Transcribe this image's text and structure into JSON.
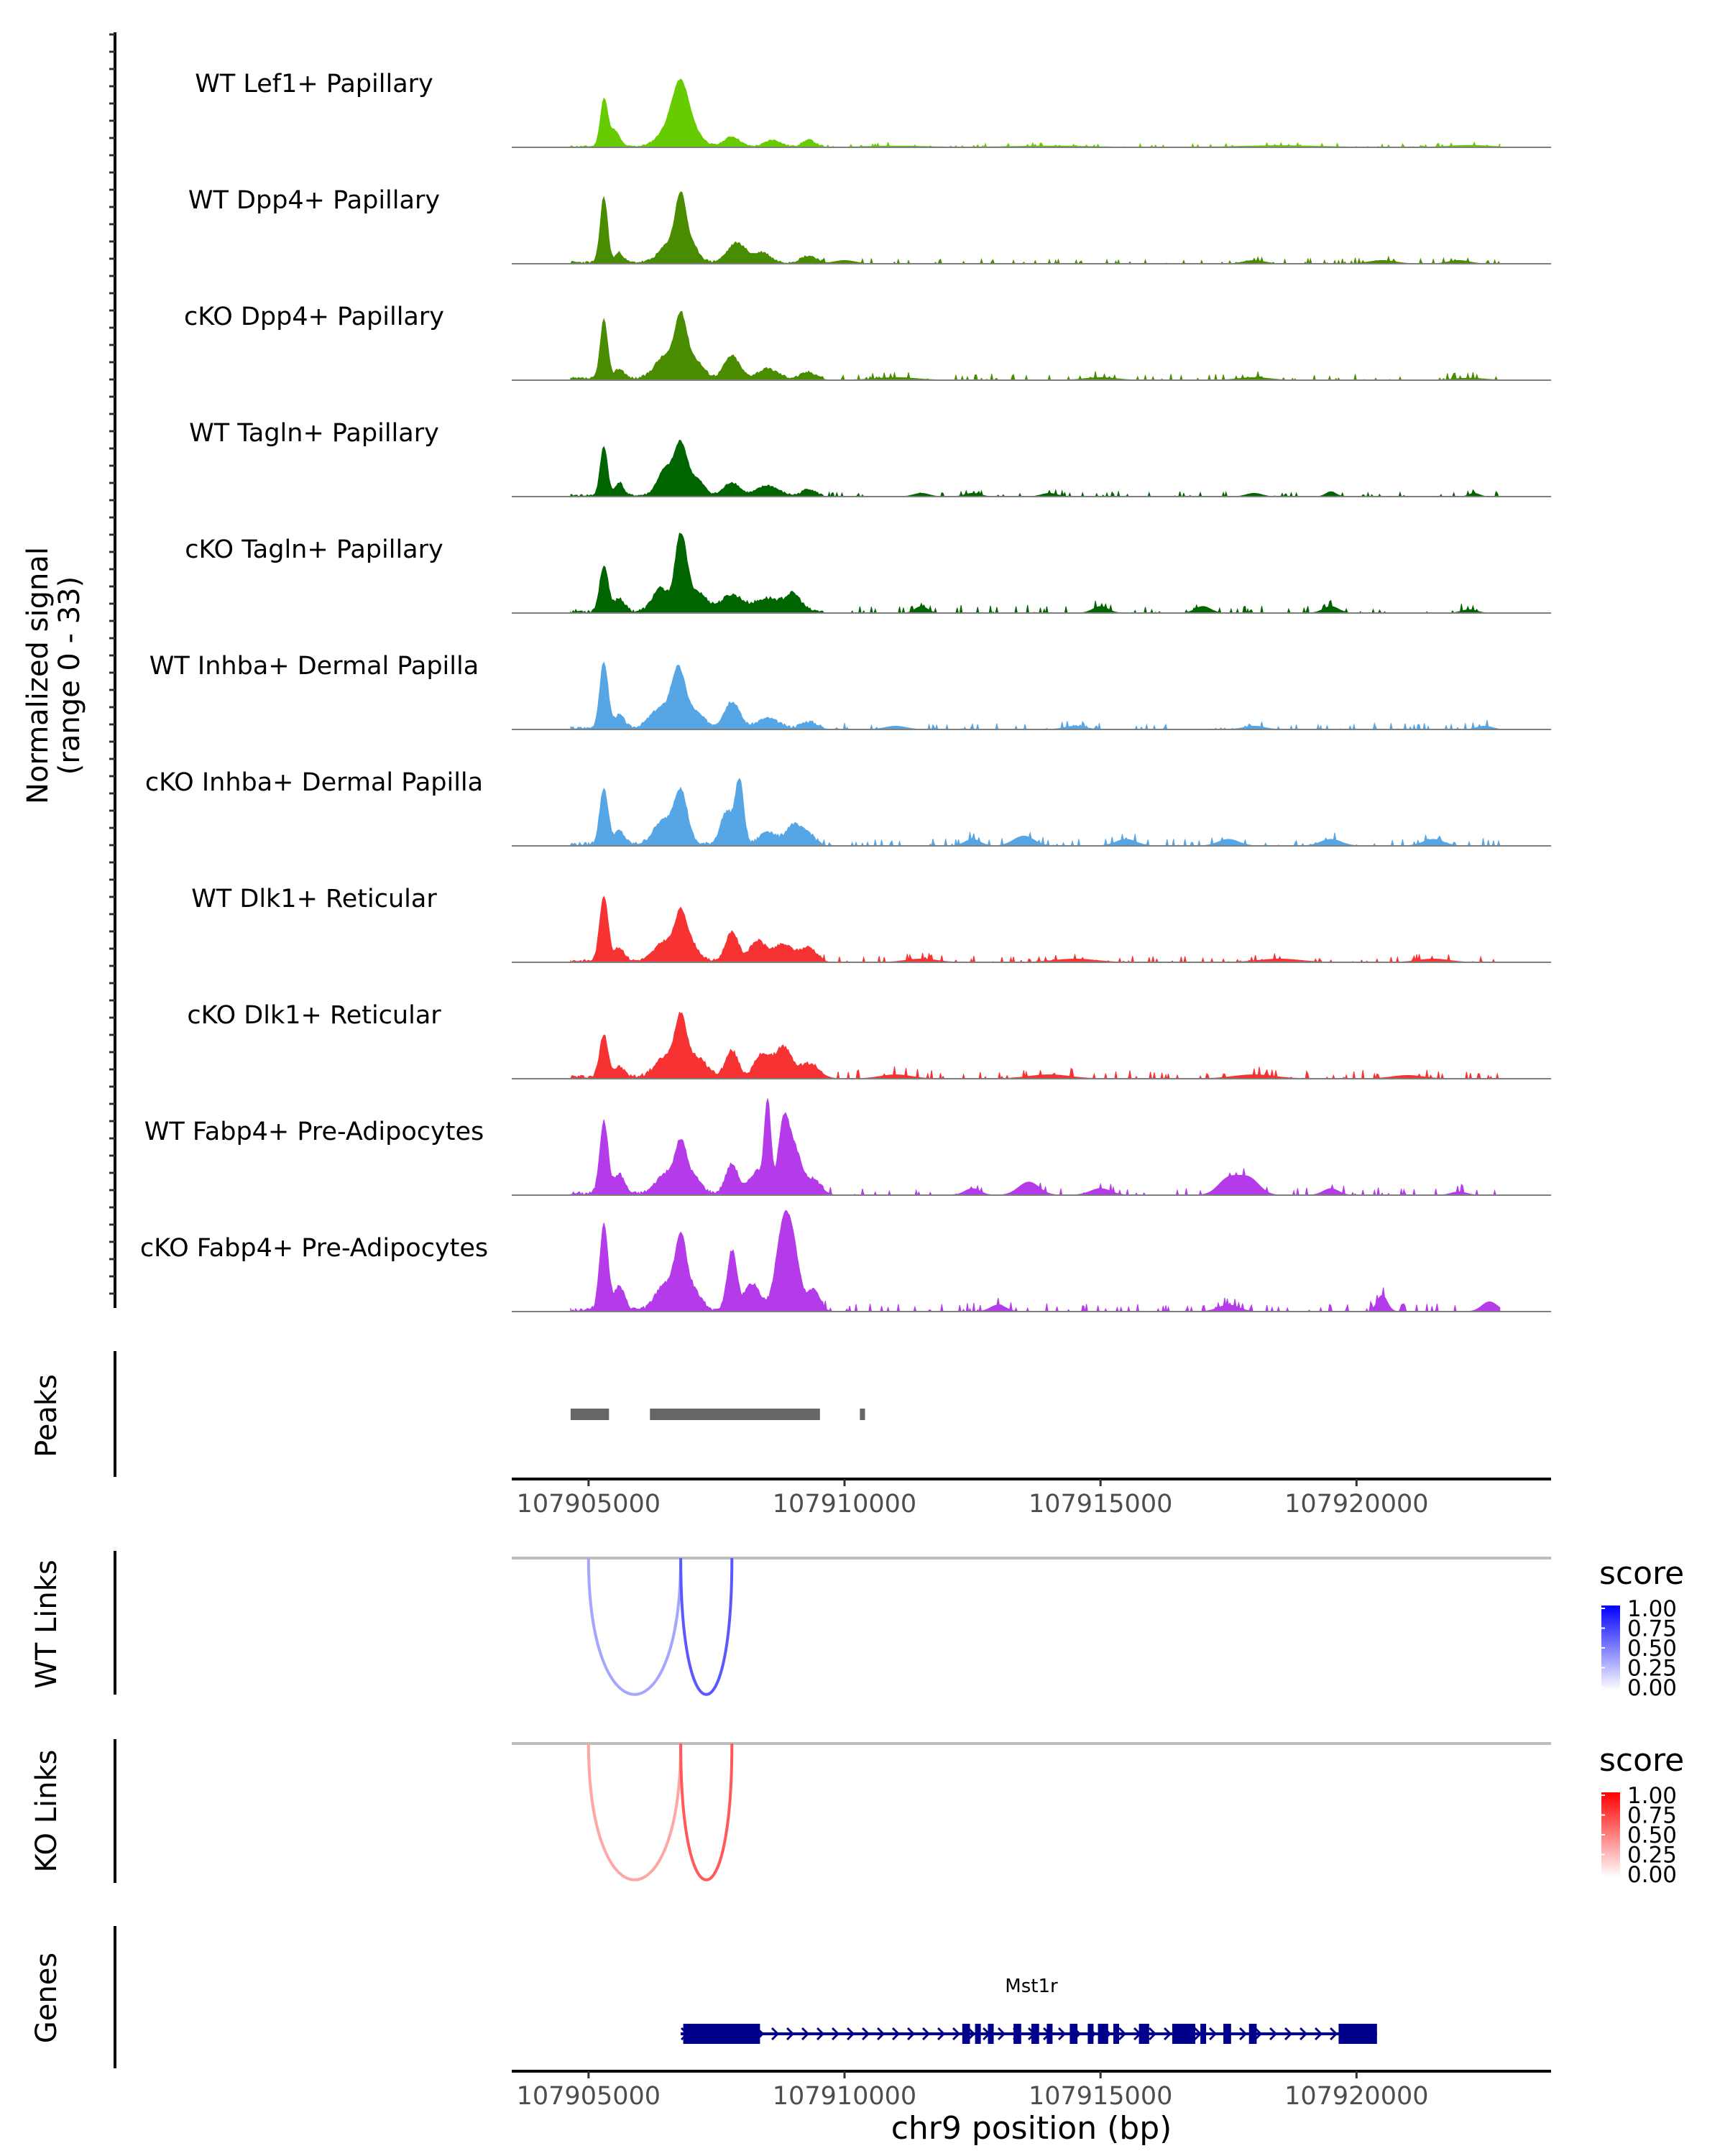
{
  "chart_data": {
    "type": "area",
    "title": "",
    "chromosome": "chr9",
    "xrange": [
      107903500,
      107923800
    ],
    "xlabel": "chr9 position (bp)",
    "x_ticks": [
      107905000,
      107910000,
      107915000,
      107920000
    ],
    "x_tick_labels": [
      "107905000",
      "107910000",
      "107915000",
      "107920000"
    ],
    "coverage": {
      "ylabel_line1": "Normalized signal",
      "ylabel_line2": "(range 0 - 33)",
      "yrange": [
        0,
        33
      ],
      "tracks": [
        {
          "name": "WT Lef1+ Papillary",
          "color": "#66CC00",
          "peaks": [
            [
              107905300,
              14,
              70
            ],
            [
              107905500,
              5,
              100
            ],
            [
              107906600,
              6,
              220
            ],
            [
              107906800,
              15,
              150
            ],
            [
              107907050,
              4,
              180
            ],
            [
              107907800,
              3,
              150
            ],
            [
              107908600,
              2,
              150
            ],
            [
              107909300,
              2,
              120
            ],
            [
              107911000,
              0.4,
              600
            ],
            [
              107914000,
              0.4,
              800
            ],
            [
              107918500,
              0.5,
              800
            ],
            [
              107922200,
              0.6,
              400
            ]
          ],
          "noise": 0.25,
          "seed": 11
        },
        {
          "name": "WT Dpp4+ Papillary",
          "color": "#4A8C00",
          "peaks": [
            [
              107905300,
              20,
              70
            ],
            [
              107905600,
              3,
              80
            ],
            [
              107906600,
              6,
              200
            ],
            [
              107906800,
              16,
              100
            ],
            [
              107907000,
              5,
              150
            ],
            [
              107907900,
              6,
              180
            ],
            [
              107908400,
              3,
              150
            ],
            [
              107909300,
              2,
              150
            ],
            [
              107910000,
              1,
              200
            ],
            [
              107918000,
              1,
              200
            ],
            [
              107920500,
              1,
              250
            ],
            [
              107922000,
              1,
              200
            ]
          ],
          "noise": 0.4,
          "seed": 23
        },
        {
          "name": "cKO Dpp4+ Papillary",
          "color": "#4A8C00",
          "peaks": [
            [
              107905300,
              18,
              70
            ],
            [
              107905600,
              3,
              100
            ],
            [
              107906500,
              7,
              200
            ],
            [
              107906800,
              16,
              110
            ],
            [
              107907050,
              6,
              180
            ],
            [
              107907800,
              7,
              150
            ],
            [
              107908500,
              3,
              200
            ],
            [
              107909300,
              2,
              150
            ],
            [
              107911000,
              0.8,
              400
            ],
            [
              107915000,
              0.8,
              300
            ],
            [
              107918000,
              0.8,
              300
            ],
            [
              107922200,
              0.6,
              300
            ]
          ],
          "noise": 0.45,
          "seed": 37
        },
        {
          "name": "WT Tagln+ Papillary",
          "color": "#006400",
          "peaks": [
            [
              107905300,
              15,
              70
            ],
            [
              107905600,
              4,
              80
            ],
            [
              107906500,
              8,
              150
            ],
            [
              107906800,
              15,
              120
            ],
            [
              107907100,
              5,
              150
            ],
            [
              107907800,
              4,
              150
            ],
            [
              107908500,
              3,
              200
            ],
            [
              107909300,
              2,
              120
            ],
            [
              107911500,
              1,
              150
            ],
            [
              107912500,
              1,
              150
            ],
            [
              107914000,
              1,
              150
            ],
            [
              107918000,
              1,
              150
            ],
            [
              107919500,
              1.5,
              100
            ],
            [
              107922300,
              1,
              100
            ]
          ],
          "noise": 0.35,
          "seed": 41
        },
        {
          "name": "cKO Tagln+ Papillary",
          "color": "#006400",
          "peaks": [
            [
              107905300,
              14,
              80
            ],
            [
              107905600,
              4,
              100
            ],
            [
              107906400,
              7,
              150
            ],
            [
              107906800,
              22,
              110
            ],
            [
              107907100,
              6,
              200
            ],
            [
              107907800,
              5,
              200
            ],
            [
              107908500,
              4,
              250
            ],
            [
              107909000,
              5,
              150
            ],
            [
              107911500,
              2,
              120
            ],
            [
              107915000,
              2,
              150
            ],
            [
              107917000,
              2,
              150
            ],
            [
              107919500,
              2,
              150
            ],
            [
              107922200,
              1,
              150
            ]
          ],
          "noise": 0.55,
          "seed": 53
        },
        {
          "name": "WT Inhba+ Dermal Papilla",
          "color": "#56A6E6",
          "peaks": [
            [
              107905300,
              20,
              80
            ],
            [
              107905600,
              4,
              100
            ],
            [
              107906400,
              6,
              200
            ],
            [
              107906750,
              16,
              130
            ],
            [
              107907050,
              5,
              200
            ],
            [
              107907800,
              8,
              150
            ],
            [
              107908500,
              3,
              200
            ],
            [
              107909300,
              2,
              150
            ],
            [
              107911000,
              1,
              200
            ],
            [
              107914500,
              1,
              200
            ],
            [
              107918000,
              1,
              200
            ],
            [
              107922500,
              1,
              150
            ]
          ],
          "noise": 0.45,
          "seed": 67
        },
        {
          "name": "cKO Inhba+ Dermal Papilla",
          "color": "#56A6E6",
          "peaks": [
            [
              107905300,
              17,
              80
            ],
            [
              107905600,
              4,
              100
            ],
            [
              107906450,
              7,
              180
            ],
            [
              107906800,
              16,
              130
            ],
            [
              107907700,
              10,
              120
            ],
            [
              107907950,
              19,
              80
            ],
            [
              107908500,
              4,
              150
            ],
            [
              107909000,
              6,
              150
            ],
            [
              107909300,
              3,
              120
            ],
            [
              107912500,
              2,
              150
            ],
            [
              107913500,
              3,
              200
            ],
            [
              107915500,
              2,
              200
            ],
            [
              107917500,
              2,
              200
            ],
            [
              107919500,
              2,
              200
            ],
            [
              107921500,
              2,
              200
            ]
          ],
          "noise": 0.55,
          "seed": 79
        },
        {
          "name": "WT Dlk1+ Reticular",
          "color": "#F63232",
          "peaks": [
            [
              107905300,
              20,
              80
            ],
            [
              107905600,
              4,
              100
            ],
            [
              107906500,
              6,
              200
            ],
            [
              107906800,
              12,
              110
            ],
            [
              107907000,
              5,
              150
            ],
            [
              107907800,
              9,
              120
            ],
            [
              107908300,
              6,
              150
            ],
            [
              107908800,
              5,
              200
            ],
            [
              107909300,
              4,
              150
            ],
            [
              107911500,
              1,
              300
            ],
            [
              107914500,
              1,
              400
            ],
            [
              107918500,
              1,
              400
            ],
            [
              107921500,
              1,
              300
            ]
          ],
          "noise": 0.45,
          "seed": 83
        },
        {
          "name": "cKO Dlk1+ Reticular",
          "color": "#F63232",
          "peaks": [
            [
              107905300,
              13,
              80
            ],
            [
              107905600,
              3,
              100
            ],
            [
              107906500,
              6,
              200
            ],
            [
              107906800,
              16,
              110
            ],
            [
              107907100,
              6,
              200
            ],
            [
              107907800,
              8,
              120
            ],
            [
              107908400,
              7,
              150
            ],
            [
              107908800,
              9,
              150
            ],
            [
              107909300,
              4,
              200
            ],
            [
              107911000,
              1.2,
              300
            ],
            [
              107914000,
              1.2,
              400
            ],
            [
              107918000,
              1.2,
              400
            ],
            [
              107921000,
              1,
              300
            ]
          ],
          "noise": 0.6,
          "seed": 97
        },
        {
          "name": "WT Fabp4+ Pre-Adipocytes",
          "color": "#B53BEA",
          "peaks": [
            [
              107905300,
              22,
              80
            ],
            [
              107905600,
              6,
              100
            ],
            [
              107906500,
              6,
              180
            ],
            [
              107906800,
              14,
              110
            ],
            [
              107907050,
              5,
              150
            ],
            [
              107907800,
              9,
              120
            ],
            [
              107908300,
              7,
              150
            ],
            [
              107908500,
              26,
              60
            ],
            [
              107908800,
              18,
              100
            ],
            [
              107909000,
              14,
              150
            ],
            [
              107909400,
              4,
              150
            ],
            [
              107912500,
              2,
              150
            ],
            [
              107913600,
              4,
              200
            ],
            [
              107915000,
              2,
              200
            ],
            [
              107917500,
              5,
              200
            ],
            [
              107917900,
              5,
              200
            ],
            [
              107919500,
              2,
              150
            ],
            [
              107922000,
              1,
              150
            ]
          ],
          "noise": 0.55,
          "seed": 101
        },
        {
          "name": "cKO Fabp4+ Pre-Adipocytes",
          "color": "#B53BEA",
          "peaks": [
            [
              107905300,
              26,
              80
            ],
            [
              107905600,
              7,
              100
            ],
            [
              107906500,
              8,
              180
            ],
            [
              107906800,
              20,
              110
            ],
            [
              107907050,
              6,
              150
            ],
            [
              107907800,
              18,
              90
            ],
            [
              107908200,
              8,
              150
            ],
            [
              107908800,
              24,
              140
            ],
            [
              107909000,
              15,
              130
            ],
            [
              107909400,
              6,
              120
            ],
            [
              107913000,
              2,
              150
            ],
            [
              107917500,
              2,
              200
            ],
            [
              107920500,
              5,
              100
            ],
            [
              107922600,
              3,
              150
            ]
          ],
          "noise": 0.6,
          "seed": 113
        }
      ]
    },
    "peaks_track": {
      "label": "Peaks",
      "regions": [
        [
          107904650,
          107905400
        ],
        [
          107906200,
          107909520
        ],
        [
          107910300,
          107910400
        ]
      ]
    },
    "wt_links": {
      "label": "WT Links",
      "legend_title": "score",
      "legend_ticks": [
        "1.00",
        "0.75",
        "0.50",
        "0.25",
        "0.00"
      ],
      "low_color": "#FFFFFF",
      "high_color": "#0000FF",
      "links": [
        {
          "start": 107905000,
          "end": 107906800,
          "score": 0.35
        },
        {
          "start": 107906800,
          "end": 107907800,
          "score": 0.65
        }
      ]
    },
    "ko_links": {
      "label": "KO Links",
      "legend_title": "score",
      "legend_ticks": [
        "1.00",
        "0.75",
        "0.50",
        "0.25",
        "0.00"
      ],
      "low_color": "#FFFFFF",
      "high_color": "#FF0000",
      "links": [
        {
          "start": 107905000,
          "end": 107906800,
          "score": 0.35
        },
        {
          "start": 107906800,
          "end": 107907800,
          "score": 0.65
        }
      ]
    },
    "genes": {
      "label": "Genes",
      "color": "#00008B",
      "gene_name": "Mst1r",
      "start": 107906800,
      "end": 107920400,
      "strand": "+",
      "exons": [
        [
          107906850,
          107908350
        ],
        [
          107912300,
          107912450
        ],
        [
          107912550,
          107912650
        ],
        [
          107912800,
          107912900
        ],
        [
          107913300,
          107913450
        ],
        [
          107913650,
          107913800
        ],
        [
          107913950,
          107914050
        ],
        [
          107914400,
          107914550
        ],
        [
          107914750,
          107914850
        ],
        [
          107914950,
          107915150
        ],
        [
          107915250,
          107915350
        ],
        [
          107915750,
          107915950
        ],
        [
          107916400,
          107916850
        ],
        [
          107916950,
          107917050
        ],
        [
          107917400,
          107917550
        ],
        [
          107917900,
          107918050
        ],
        [
          107919650,
          107920400
        ]
      ]
    }
  }
}
